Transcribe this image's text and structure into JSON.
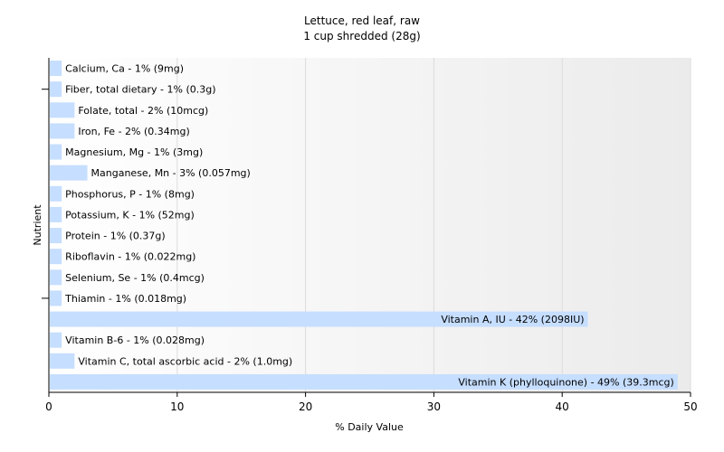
{
  "chart_data": {
    "type": "bar",
    "orientation": "horizontal",
    "title": "Lettuce, red leaf, raw",
    "subtitle": "1 cup shredded (28g)",
    "xlabel": "% Daily Value",
    "ylabel": "Nutrient",
    "xlim": [
      0,
      50
    ],
    "xticks": [
      0,
      10,
      20,
      30,
      40,
      50
    ],
    "grid": true,
    "bar_color": "#c6deff",
    "categories": [
      "Calcium, Ca",
      "Fiber, total dietary",
      "Folate, total",
      "Iron, Fe",
      "Magnesium, Mg",
      "Manganese, Mn",
      "Phosphorus, P",
      "Potassium, K",
      "Protein",
      "Riboflavin",
      "Selenium, Se",
      "Thiamin",
      "Vitamin A, IU",
      "Vitamin B-6",
      "Vitamin C, total ascorbic acid",
      "Vitamin K (phylloquinone)"
    ],
    "values": [
      1,
      1,
      2,
      2,
      1,
      3,
      1,
      1,
      1,
      1,
      1,
      1,
      42,
      1,
      2,
      49
    ],
    "labels": [
      "Calcium, Ca - 1% (9mg)",
      "Fiber, total dietary - 1% (0.3g)",
      "Folate, total - 2% (10mcg)",
      "Iron, Fe - 2% (0.34mg)",
      "Magnesium, Mg - 1% (3mg)",
      "Manganese, Mn - 3% (0.057mg)",
      "Phosphorus, P - 1% (8mg)",
      "Potassium, K - 1% (52mg)",
      "Protein - 1% (0.37g)",
      "Riboflavin - 1% (0.022mg)",
      "Selenium, Se - 1% (0.4mcg)",
      "Thiamin - 1% (0.018mg)",
      "Vitamin A, IU - 42% (2098IU)",
      "Vitamin B-6 - 1% (0.028mg)",
      "Vitamin C, total ascorbic acid - 2% (1.0mg)",
      "Vitamin K (phylloquinone) - 49% (39.3mcg)"
    ]
  }
}
